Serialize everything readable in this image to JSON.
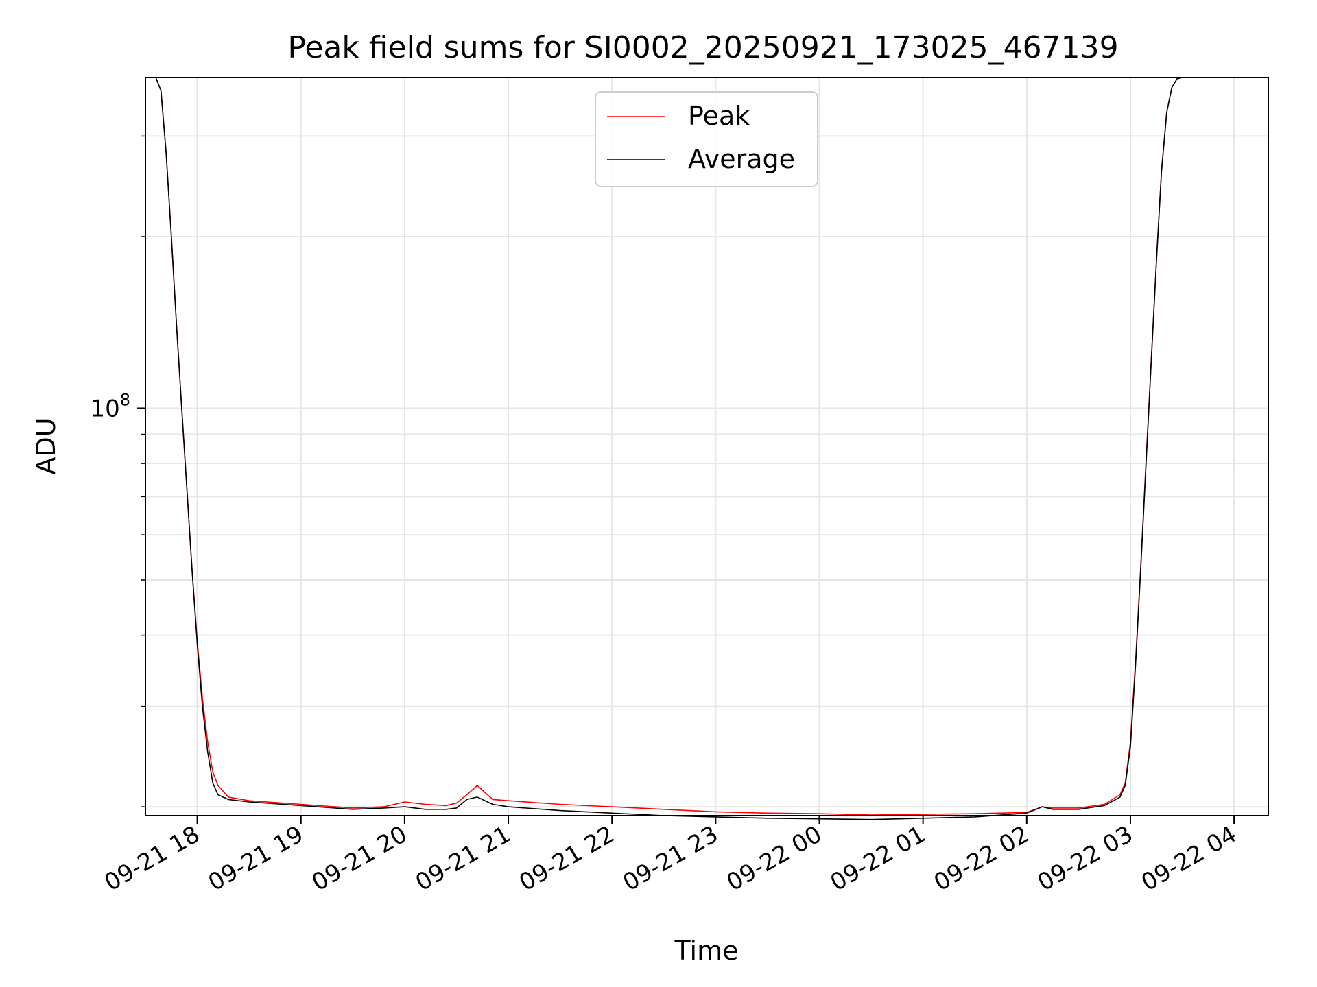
{
  "chart_data": {
    "type": "line",
    "title": "Peak field sums for SI0002_20250921_173025_467139",
    "xlabel": "Time",
    "ylabel": "ADU",
    "yscale": "log",
    "ytick_label": {
      "base": "10",
      "exponent": "8"
    },
    "grid": true,
    "legend_position": "top-center",
    "x_unit": "hours since 09-21 17:30",
    "xlim": [
      0,
      10.83
    ],
    "ylim": [
      19300000.0,
      380000000.0
    ],
    "x_ticks": [
      {
        "hour": 0.5,
        "label": "09-21 18"
      },
      {
        "hour": 1.5,
        "label": "09-21 19"
      },
      {
        "hour": 2.5,
        "label": "09-21 20"
      },
      {
        "hour": 3.5,
        "label": "09-21 21"
      },
      {
        "hour": 4.5,
        "label": "09-21 22"
      },
      {
        "hour": 5.5,
        "label": "09-21 23"
      },
      {
        "hour": 6.5,
        "label": "09-22 00"
      },
      {
        "hour": 7.5,
        "label": "09-22 01"
      },
      {
        "hour": 8.5,
        "label": "09-22 02"
      },
      {
        "hour": 9.5,
        "label": "09-22 03"
      },
      {
        "hour": 10.5,
        "label": "09-22 04"
      }
    ],
    "y_major_ticks": [
      100000000
    ],
    "y_minor_ticks": [
      20000000,
      30000000,
      40000000,
      50000000,
      60000000,
      70000000,
      80000000,
      90000000,
      200000000,
      300000000
    ],
    "series": [
      {
        "name": "Peak",
        "color": "#ff0000",
        "points": [
          [
            0.1,
            380000000.0
          ],
          [
            0.15,
            360000000.0
          ],
          [
            0.2,
            280000000.0
          ],
          [
            0.25,
            200000000.0
          ],
          [
            0.3,
            140000000.0
          ],
          [
            0.35,
            100000000.0
          ],
          [
            0.4,
            72000000.0
          ],
          [
            0.45,
            52000000.0
          ],
          [
            0.5,
            39000000.0
          ],
          [
            0.55,
            31000000.0
          ],
          [
            0.6,
            26000000.0
          ],
          [
            0.65,
            23000000.0
          ],
          [
            0.7,
            21800000.0
          ],
          [
            0.8,
            20800000.0
          ],
          [
            1.0,
            20500000.0
          ],
          [
            1.5,
            20200000.0
          ],
          [
            2.0,
            19900000.0
          ],
          [
            2.3,
            20000000.0
          ],
          [
            2.5,
            20400000.0
          ],
          [
            2.7,
            20200000.0
          ],
          [
            2.9,
            20100000.0
          ],
          [
            3.0,
            20300000.0
          ],
          [
            3.1,
            21000000.0
          ],
          [
            3.2,
            21800000.0
          ],
          [
            3.35,
            20600000.0
          ],
          [
            3.5,
            20500000.0
          ],
          [
            4.0,
            20200000.0
          ],
          [
            4.5,
            20000000.0
          ],
          [
            5.0,
            19800000.0
          ],
          [
            5.5,
            19600000.0
          ],
          [
            6.0,
            19500000.0
          ],
          [
            6.5,
            19450000.0
          ],
          [
            7.0,
            19350000.0
          ],
          [
            7.5,
            19400000.0
          ],
          [
            8.0,
            19450000.0
          ],
          [
            8.5,
            19550000.0
          ],
          [
            8.65,
            20000000.0
          ],
          [
            8.75,
            19900000.0
          ],
          [
            9.0,
            19900000.0
          ],
          [
            9.25,
            20200000.0
          ],
          [
            9.4,
            21000000.0
          ],
          [
            9.45,
            22000000.0
          ],
          [
            9.5,
            26000000.0
          ],
          [
            9.55,
            36000000.0
          ],
          [
            9.6,
            53000000.0
          ],
          [
            9.65,
            80000000.0
          ],
          [
            9.7,
            120000000.0
          ],
          [
            9.75,
            180000000.0
          ],
          [
            9.8,
            260000000.0
          ],
          [
            9.85,
            330000000.0
          ],
          [
            9.9,
            365000000.0
          ],
          [
            9.95,
            378000000.0
          ],
          [
            10.0,
            380000000.0
          ]
        ]
      },
      {
        "name": "Average",
        "color": "#000000",
        "points": [
          [
            0.1,
            380000000.0
          ],
          [
            0.15,
            360000000.0
          ],
          [
            0.2,
            280000000.0
          ],
          [
            0.25,
            200000000.0
          ],
          [
            0.3,
            140000000.0
          ],
          [
            0.35,
            100000000.0
          ],
          [
            0.4,
            72000000.0
          ],
          [
            0.45,
            52000000.0
          ],
          [
            0.5,
            38500000.0
          ],
          [
            0.55,
            30000000.0
          ],
          [
            0.6,
            25000000.0
          ],
          [
            0.65,
            22000000.0
          ],
          [
            0.7,
            21000000.0
          ],
          [
            0.8,
            20600000.0
          ],
          [
            1.0,
            20400000.0
          ],
          [
            1.5,
            20100000.0
          ],
          [
            2.0,
            19800000.0
          ],
          [
            2.3,
            19900000.0
          ],
          [
            2.5,
            20000000.0
          ],
          [
            2.7,
            19800000.0
          ],
          [
            2.9,
            19800000.0
          ],
          [
            3.0,
            19900000.0
          ],
          [
            3.1,
            20600000.0
          ],
          [
            3.2,
            20800000.0
          ],
          [
            3.35,
            20200000.0
          ],
          [
            3.5,
            20000000.0
          ],
          [
            4.0,
            19700000.0
          ],
          [
            4.5,
            19500000.0
          ],
          [
            5.0,
            19300000.0
          ],
          [
            5.5,
            19200000.0
          ],
          [
            6.0,
            19100000.0
          ],
          [
            6.5,
            19050000.0
          ],
          [
            7.0,
            19000000.0
          ],
          [
            7.5,
            19100000.0
          ],
          [
            8.0,
            19200000.0
          ],
          [
            8.5,
            19500000.0
          ],
          [
            8.65,
            20000000.0
          ],
          [
            8.75,
            19800000.0
          ],
          [
            9.0,
            19800000.0
          ],
          [
            9.25,
            20100000.0
          ],
          [
            9.4,
            20800000.0
          ],
          [
            9.45,
            21800000.0
          ],
          [
            9.5,
            25500000.0
          ],
          [
            9.55,
            35500000.0
          ],
          [
            9.6,
            52500000.0
          ],
          [
            9.65,
            79000000.0
          ],
          [
            9.7,
            120000000.0
          ],
          [
            9.75,
            180000000.0
          ],
          [
            9.8,
            260000000.0
          ],
          [
            9.85,
            330000000.0
          ],
          [
            9.9,
            365000000.0
          ],
          [
            9.95,
            378000000.0
          ],
          [
            10.0,
            380000000.0
          ]
        ]
      }
    ]
  }
}
